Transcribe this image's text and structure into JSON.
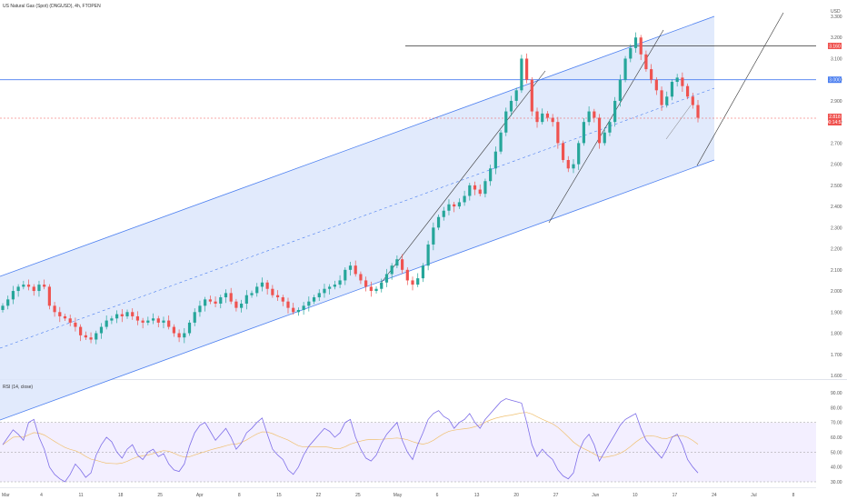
{
  "header": {
    "symbol_title": "US Natural Gas (Spot) (DNGUSD), 4h, FTOPEN",
    "currency": "USD"
  },
  "rsi_panel": {
    "title": "RSI (14, close)"
  },
  "badges": {
    "resistance_label": "3.160",
    "blue_level_label": "3.000",
    "last_price_label": "2.818",
    "countdown_label": "00:14:52"
  },
  "colors": {
    "up": "#26a69a",
    "down": "#ef5350",
    "channel_fill": "#dce6fc",
    "channel_line": "#4a7ef0",
    "rsi_line": "#7e6ee8",
    "rsi_ma": "#f0c070",
    "rsi_band": "#f3efff"
  },
  "chart_data": {
    "type": "candlestick",
    "price_axis": {
      "min": 1.6,
      "max": 3.3,
      "ticks": [
        "3.300",
        "3.200",
        "3.100",
        "3.000",
        "2.900",
        "2.800",
        "2.700",
        "2.600",
        "2.500",
        "2.400",
        "2.300",
        "2.200",
        "2.100",
        "2.000",
        "1.900",
        "1.800",
        "1.700",
        "1.600"
      ]
    },
    "time_axis": {
      "labels": [
        "Mar",
        "4",
        "11",
        "18",
        "25",
        "Apr",
        "8",
        "15",
        "22",
        "25",
        "May",
        "6",
        "13",
        "20",
        "27",
        "Jun",
        "10",
        "17",
        "24",
        "Jul",
        "8"
      ]
    },
    "closes": [
      1.93,
      1.96,
      2.0,
      2.02,
      2.03,
      2.02,
      2.0,
      2.03,
      2.02,
      1.93,
      1.9,
      1.88,
      1.87,
      1.85,
      1.83,
      1.79,
      1.78,
      1.77,
      1.8,
      1.83,
      1.86,
      1.87,
      1.89,
      1.88,
      1.9,
      1.88,
      1.86,
      1.85,
      1.86,
      1.87,
      1.85,
      1.86,
      1.83,
      1.8,
      1.78,
      1.8,
      1.85,
      1.9,
      1.93,
      1.96,
      1.95,
      1.94,
      1.97,
      1.99,
      1.95,
      1.92,
      1.94,
      1.98,
      1.99,
      2.02,
      2.04,
      2.01,
      1.98,
      1.97,
      1.95,
      1.92,
      1.9,
      1.91,
      1.93,
      1.95,
      1.97,
      1.99,
      2.01,
      2.02,
      2.03,
      2.05,
      2.1,
      2.12,
      2.08,
      2.05,
      2.02,
      2.0,
      2.01,
      2.04,
      2.08,
      2.12,
      2.15,
      2.1,
      2.05,
      2.03,
      2.06,
      2.12,
      2.22,
      2.3,
      2.35,
      2.38,
      2.41,
      2.4,
      2.42,
      2.45,
      2.5,
      2.48,
      2.46,
      2.52,
      2.58,
      2.66,
      2.75,
      2.85,
      2.9,
      2.95,
      3.1,
      3.0,
      2.85,
      2.8,
      2.84,
      2.82,
      2.8,
      2.7,
      2.62,
      2.58,
      2.6,
      2.7,
      2.8,
      2.85,
      2.82,
      2.7,
      2.75,
      2.8,
      2.9,
      3.0,
      3.1,
      3.15,
      3.2,
      3.12,
      3.05,
      3.0,
      2.95,
      2.88,
      2.92,
      2.99,
      3.01,
      2.97,
      2.92,
      2.88,
      2.82
    ],
    "level_resistance": 3.16,
    "level_blue": 3.0,
    "last_price": 2.818,
    "rsi_axis": {
      "min": 30,
      "max": 90,
      "ticks": [
        "90.00",
        "80.00",
        "70.00",
        "60.00",
        "50.00",
        "40.00",
        "30.00"
      ]
    },
    "rsi_levels": [
      70,
      50,
      30
    ],
    "rsi": [
      55,
      60,
      65,
      62,
      58,
      70,
      72,
      60,
      52,
      40,
      35,
      32,
      30,
      35,
      42,
      38,
      33,
      36,
      48,
      55,
      60,
      57,
      50,
      46,
      52,
      55,
      48,
      45,
      50,
      52,
      47,
      49,
      42,
      38,
      37,
      42,
      54,
      63,
      68,
      70,
      64,
      58,
      62,
      66,
      60,
      52,
      56,
      63,
      66,
      70,
      73,
      62,
      52,
      48,
      45,
      38,
      35,
      40,
      48,
      54,
      58,
      62,
      66,
      64,
      60,
      63,
      70,
      72,
      60,
      52,
      46,
      44,
      48,
      56,
      62,
      66,
      70,
      58,
      50,
      45,
      55,
      63,
      72,
      76,
      78,
      74,
      72,
      66,
      70,
      72,
      76,
      70,
      66,
      72,
      76,
      80,
      84,
      86,
      85,
      84,
      83,
      70,
      55,
      47,
      52,
      48,
      45,
      38,
      34,
      32,
      36,
      50,
      58,
      62,
      55,
      44,
      50,
      56,
      62,
      68,
      72,
      74,
      76,
      66,
      58,
      54,
      50,
      46,
      52,
      60,
      62,
      55,
      45,
      40,
      36
    ]
  }
}
